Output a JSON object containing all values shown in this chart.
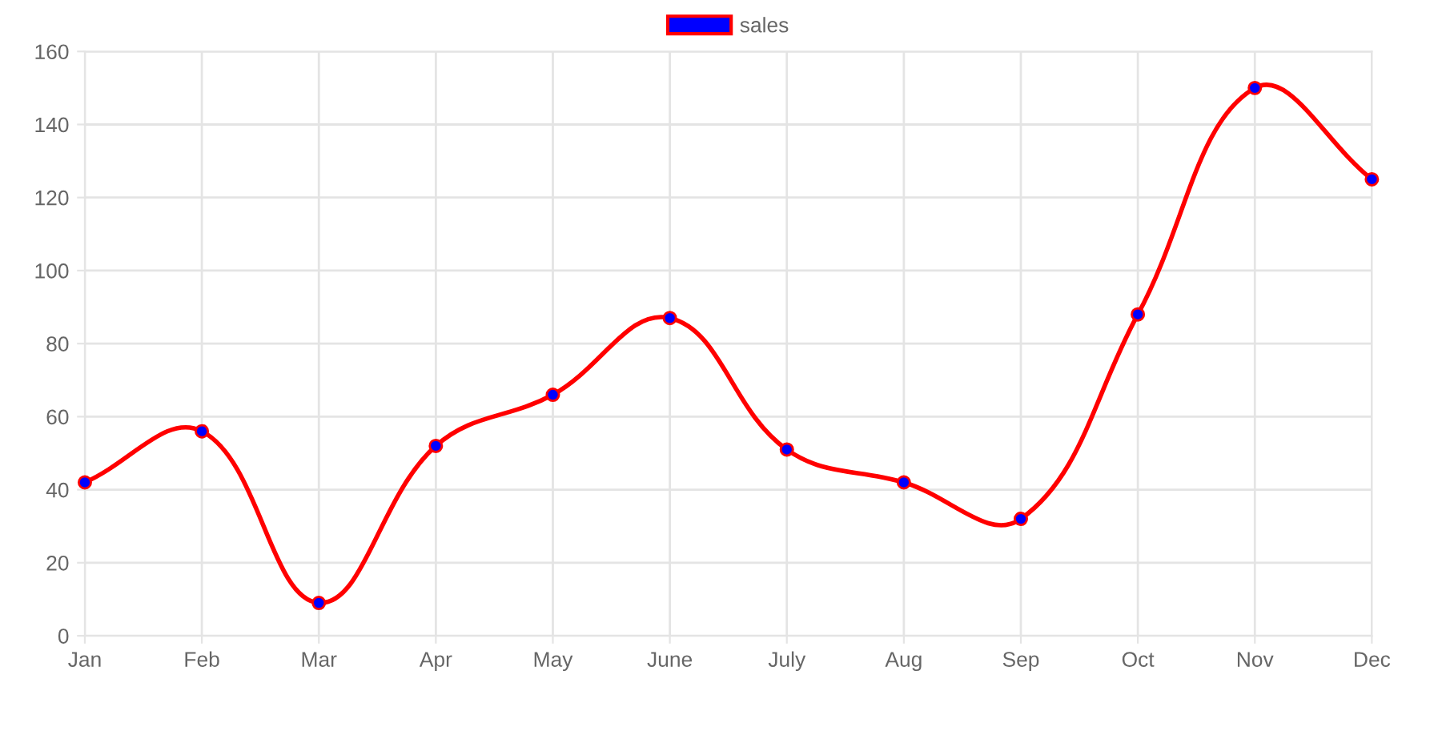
{
  "chart_data": {
    "type": "line",
    "categories": [
      "Jan",
      "Feb",
      "Mar",
      "Apr",
      "May",
      "June",
      "July",
      "Aug",
      "Sep",
      "Oct",
      "Nov",
      "Dec"
    ],
    "series": [
      {
        "name": "sales",
        "color": "#ff0000",
        "colors": [
          "#0000ff",
          "#0000ff",
          "#0000ff",
          "#0000ff",
          "#0000ff",
          "#0000ff",
          "#0000ff",
          "#0000ff",
          "#0000ff",
          "#0000ff",
          "#0000ff",
          "#0000ff"
        ],
        "values": [
          42,
          56,
          9,
          52,
          66,
          87,
          51,
          42,
          32,
          88,
          150,
          125
        ]
      }
    ],
    "ylim": [
      0,
      160
    ],
    "yticks": [
      0,
      20,
      40,
      60,
      80,
      100,
      120,
      140,
      160
    ],
    "grid": true,
    "legend": "top",
    "marker": "circle",
    "line_style": "solid"
  }
}
